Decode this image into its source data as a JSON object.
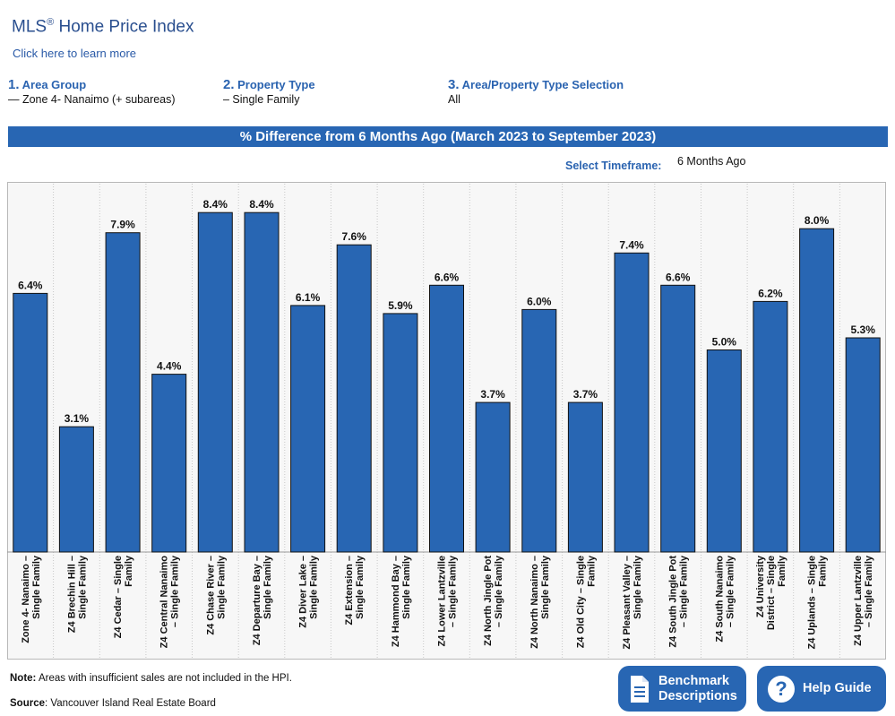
{
  "header": {
    "title": "MLS",
    "title_mark": "®",
    "title_rest": " Home Price Index",
    "learn_link": "Click here to learn more"
  },
  "steps": [
    {
      "num": "1.",
      "label": "Area Group",
      "value": "— Zone 4- Nanaimo (+ subareas)"
    },
    {
      "num": "2.",
      "label": "Property Type",
      "value": "– Single Family"
    },
    {
      "num": "3.",
      "label": "Area/Property Type Selection",
      "value": "All"
    }
  ],
  "banner": "% Difference from 6 Months Ago (March 2023 to September 2023)",
  "timeframe": {
    "label": "Select Timeframe:",
    "value": "6 Months Ago"
  },
  "footer": {
    "note_label": "Note:",
    "note_text": " Areas with insufficient sales are not included in the HPI.",
    "source_label": "Source",
    "source_text": ": Vancouver Island Real Estate Board"
  },
  "buttons": {
    "benchmark_line1": "Benchmark",
    "benchmark_line2": "Descriptions",
    "help": "Help Guide",
    "help_glyph": "?"
  },
  "colors": {
    "bar": "#2866b3",
    "accent": "#2a63b0",
    "plot_bg": "#f7f7f7"
  },
  "chart_data": {
    "type": "bar",
    "title": "% Difference from 6 Months Ago (March 2023 to September 2023)",
    "ylim": [
      0,
      9
    ],
    "grid": "vertical dotted separators",
    "categories": [
      [
        "Zone 4- Nanaimo –",
        "Single Family"
      ],
      [
        "Z4 Brechin Hill –",
        "Single Family"
      ],
      [
        "Z4 Cedar – Single",
        "Family"
      ],
      [
        "Z4 Central Nanaimo",
        "– Single Family"
      ],
      [
        "Z4 Chase River –",
        "Single Family"
      ],
      [
        "Z4 Departure Bay –",
        "Single Family"
      ],
      [
        "Z4 Diver Lake –",
        "Single Family"
      ],
      [
        "Z4 Extension –",
        "Single Family"
      ],
      [
        "Z4 Hammond Bay –",
        "Single Family"
      ],
      [
        "Z4 Lower Lantzville",
        "– Single Family"
      ],
      [
        "Z4 North Jingle Pot",
        "– Single Family"
      ],
      [
        "Z4 North Nanaimo –",
        "Single Family"
      ],
      [
        "Z4 Old City – Single",
        "Family"
      ],
      [
        "Z4 Pleasant Valley –",
        "Single Family"
      ],
      [
        "Z4 South Jingle Pot",
        "– Single Family"
      ],
      [
        "Z4 South Nanaimo",
        "– Single Family"
      ],
      [
        "Z4 University",
        "District – Single",
        "Family"
      ],
      [
        "Z4 Uplands – Single",
        "Family"
      ],
      [
        "Z4 Upper Lantzville",
        "– Single Family"
      ]
    ],
    "values": [
      6.4,
      3.1,
      7.9,
      4.4,
      8.4,
      8.4,
      6.1,
      7.6,
      5.9,
      6.6,
      3.7,
      6.0,
      3.7,
      7.4,
      6.6,
      5.0,
      6.2,
      8.0,
      5.3
    ],
    "labels": [
      "6.4%",
      "3.1%",
      "7.9%",
      "4.4%",
      "8.4%",
      "8.4%",
      "6.1%",
      "7.6%",
      "5.9%",
      "6.6%",
      "3.7%",
      "6.0%",
      "3.7%",
      "7.4%",
      "6.6%",
      "5.0%",
      "6.2%",
      "8.0%",
      "5.3%"
    ]
  }
}
